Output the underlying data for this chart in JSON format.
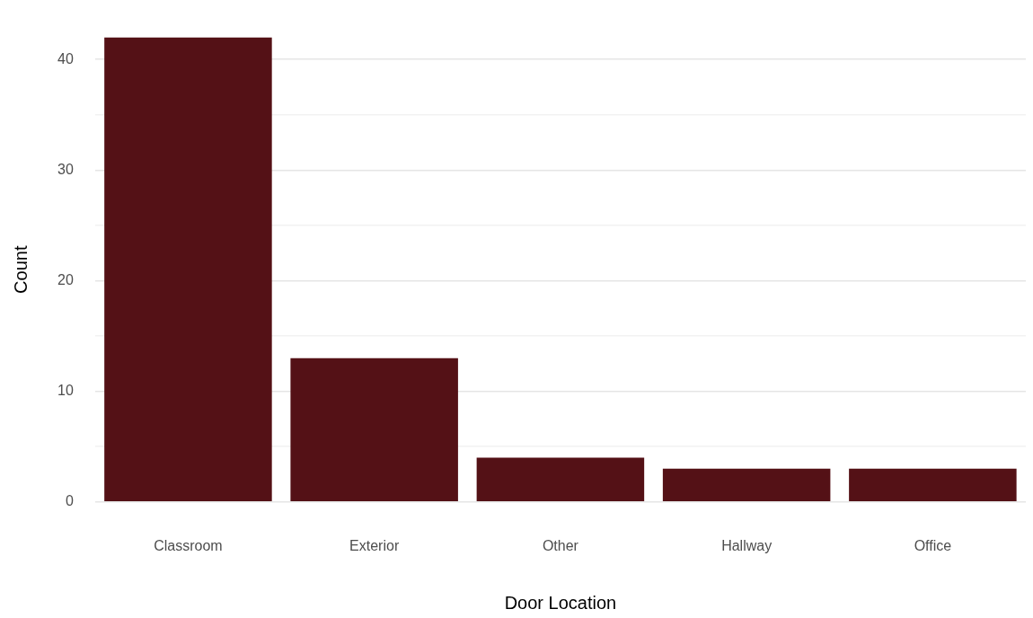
{
  "chart_data": {
    "type": "bar",
    "xlabel": "Door Location",
    "ylabel": "Count",
    "categories": [
      "Classroom",
      "Exterior",
      "Other",
      "Hallway",
      "Office"
    ],
    "values": [
      42,
      13,
      4,
      3,
      3
    ],
    "color": "#541116",
    "ylim": [
      0,
      42
    ],
    "yticks": [
      0,
      {
        "value": 5,
        "label": null
      },
      10,
      {
        "value": 15,
        "label": null
      },
      20,
      {
        "value": 25,
        "label": null
      },
      30,
      {
        "value": 35,
        "label": null
      },
      40
    ],
    "grid": "y"
  }
}
